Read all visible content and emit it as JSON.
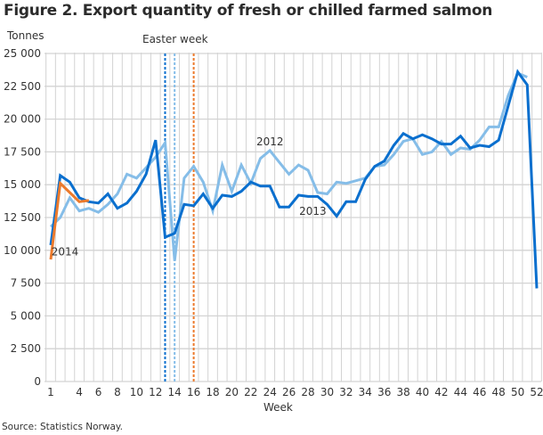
{
  "figure": {
    "title": "Figure 2. Export quantity of fresh or chilled farmed salmon",
    "ylabel": "Tonnes",
    "xlabel": "Week",
    "easter_label": "Easter week",
    "source": "Source: Statistics Norway."
  },
  "colors": {
    "2012": "#85bde8",
    "2013": "#0a6fce",
    "2014": "#ec7a2c",
    "grid": "#d3d3d3"
  },
  "chart_data": {
    "type": "line",
    "title": "Figure 2. Export quantity of fresh or chilled farmed salmon",
    "xlabel": "Week",
    "ylabel": "Tonnes",
    "ylim": [
      0,
      25000
    ],
    "xlim": [
      1,
      52
    ],
    "y_ticks": [
      0,
      2500,
      5000,
      7500,
      10000,
      12500,
      15000,
      17500,
      20000,
      22500,
      25000
    ],
    "y_tick_labels": [
      "0",
      "2 500",
      "5 000",
      "7 500",
      "10 000",
      "12 500",
      "15 000",
      "17 500",
      "20 000",
      "22 500",
      "25 000"
    ],
    "x_tick_labels": [
      "1",
      "4",
      "6",
      "8",
      "10",
      "12",
      "14",
      "16",
      "18",
      "20",
      "22",
      "24",
      "26",
      "28",
      "30",
      "32",
      "34",
      "36",
      "38",
      "40",
      "42",
      "44",
      "46",
      "48",
      "50",
      "52"
    ],
    "grid": true,
    "legend": "inline labels",
    "annotations": [
      {
        "text": "2012",
        "x": 24,
        "y": 18000
      },
      {
        "text": "2013",
        "x": 28.5,
        "y": 12700
      },
      {
        "text": "2014",
        "x": 2.5,
        "y": 9600
      },
      {
        "text": "Easter week",
        "x": 14.5,
        "y": 26000
      }
    ],
    "easter_markers": [
      {
        "series": "2013",
        "week": 13
      },
      {
        "series": "2012",
        "week": 14
      },
      {
        "series": "2014",
        "week": 16
      }
    ],
    "x": [
      1,
      2,
      3,
      4,
      5,
      6,
      7,
      8,
      9,
      10,
      11,
      12,
      13,
      14,
      15,
      16,
      17,
      18,
      19,
      20,
      21,
      22,
      23,
      24,
      25,
      26,
      27,
      28,
      29,
      30,
      31,
      32,
      33,
      34,
      35,
      36,
      37,
      38,
      39,
      40,
      41,
      42,
      43,
      44,
      45,
      46,
      47,
      48,
      49,
      50,
      51,
      52
    ],
    "series": [
      {
        "name": "2012",
        "values": [
          11800,
          12500,
          14000,
          13000,
          13200,
          12900,
          13500,
          14300,
          15800,
          15500,
          16300,
          17100,
          18200,
          9200,
          15500,
          16400,
          15200,
          13000,
          16500,
          14500,
          16500,
          15100,
          17000,
          17600,
          16700,
          15800,
          16500,
          16100,
          14400,
          14300,
          15200,
          15100,
          15300,
          15500,
          16400,
          16500,
          17300,
          18300,
          18500,
          17300,
          17500,
          18300,
          17300,
          17800,
          17700,
          18400,
          19400,
          19400,
          21800,
          23500,
          23200,
          null
        ]
      },
      {
        "name": "2013",
        "values": [
          10400,
          15700,
          15200,
          14000,
          13700,
          13600,
          14300,
          13200,
          13600,
          14500,
          15800,
          18400,
          11000,
          11300,
          13500,
          13400,
          14300,
          13200,
          14200,
          14100,
          14500,
          15200,
          14900,
          14900,
          13300,
          13300,
          14200,
          14100,
          14100,
          13500,
          12600,
          13700,
          13700,
          15400,
          16400,
          16800,
          18000,
          18900,
          18500,
          18800,
          18500,
          18100,
          18100,
          18700,
          17800,
          18000,
          17900,
          18400,
          21000,
          23600,
          22600,
          7100
        ]
      },
      {
        "name": "2014",
        "values": [
          9300,
          15100,
          14400,
          13700,
          13800,
          null,
          null,
          null,
          null,
          null,
          null,
          null,
          null,
          null,
          null,
          null,
          null,
          null,
          null,
          null,
          null,
          null,
          null,
          null,
          null,
          null,
          null,
          null,
          null,
          null,
          null,
          null,
          null,
          null,
          null,
          null,
          null,
          null,
          null,
          null,
          null,
          null,
          null,
          null,
          null,
          null,
          null,
          null,
          null,
          null,
          null,
          null
        ]
      }
    ]
  }
}
